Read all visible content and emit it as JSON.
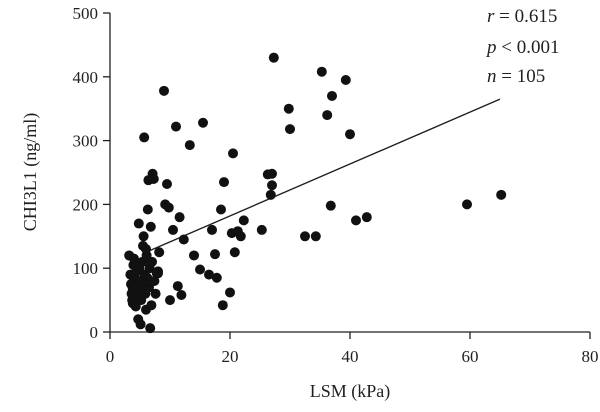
{
  "chart_data": {
    "type": "scatter",
    "xlabel": "LSM (kPa)",
    "ylabel": "CHI3L1 (ng/ml)",
    "xlim": [
      0,
      80
    ],
    "ylim": [
      0,
      500
    ],
    "xticks": [
      "0",
      "20",
      "40",
      "60",
      "80"
    ],
    "yticks": [
      "0",
      "100",
      "200",
      "300",
      "400",
      "500"
    ],
    "grid": false,
    "legend": "none",
    "annotations": {
      "r_symbol": "r",
      "r_value": " = 0.615",
      "p_symbol": "p",
      "p_value": " < 0.001",
      "n_symbol": "n",
      "n_value": " = 105"
    },
    "trendline": {
      "x": [
        6.0,
        65.0
      ],
      "y": [
        125,
        365
      ]
    },
    "points": [
      [
        3.2,
        120
      ],
      [
        3.4,
        90
      ],
      [
        3.5,
        75
      ],
      [
        3.6,
        60
      ],
      [
        3.7,
        50
      ],
      [
        3.8,
        45
      ],
      [
        3.9,
        105
      ],
      [
        4.0,
        115
      ],
      [
        4.1,
        85
      ],
      [
        4.2,
        70
      ],
      [
        4.3,
        40
      ],
      [
        4.4,
        55
      ],
      [
        4.5,
        95
      ],
      [
        4.6,
        65
      ],
      [
        4.7,
        20
      ],
      [
        4.8,
        170
      ],
      [
        4.9,
        100
      ],
      [
        5.0,
        80
      ],
      [
        5.1,
        12
      ],
      [
        5.2,
        50
      ],
      [
        5.3,
        72
      ],
      [
        5.4,
        110
      ],
      [
        5.5,
        135
      ],
      [
        5.6,
        150
      ],
      [
        5.7,
        305
      ],
      [
        5.8,
        90
      ],
      [
        5.9,
        60
      ],
      [
        6.0,
        35
      ],
      [
        6.1,
        120
      ],
      [
        6.2,
        85
      ],
      [
        6.3,
        192
      ],
      [
        6.4,
        238
      ],
      [
        6.5,
        70
      ],
      [
        6.6,
        100
      ],
      [
        6.7,
        6
      ],
      [
        6.8,
        165
      ],
      [
        6.9,
        42
      ],
      [
        7.0,
        110
      ],
      [
        7.1,
        248
      ],
      [
        7.2,
        240
      ],
      [
        7.4,
        80
      ],
      [
        7.6,
        60
      ],
      [
        7.8,
        92
      ],
      [
        8.0,
        95
      ],
      [
        8.2,
        125
      ],
      [
        4.2,
        108
      ],
      [
        4.5,
        98
      ],
      [
        3.8,
        68
      ],
      [
        5.0,
        58
      ],
      [
        5.8,
        75
      ],
      [
        9.0,
        378
      ],
      [
        9.2,
        200
      ],
      [
        9.5,
        232
      ],
      [
        9.8,
        195
      ],
      [
        10.0,
        50
      ],
      [
        10.5,
        160
      ],
      [
        11.0,
        322
      ],
      [
        11.3,
        72
      ],
      [
        11.6,
        180
      ],
      [
        11.9,
        58
      ],
      [
        12.3,
        145
      ],
      [
        13.3,
        293
      ],
      [
        14.0,
        120
      ],
      [
        15.0,
        98
      ],
      [
        15.5,
        328
      ],
      [
        16.5,
        90
      ],
      [
        17.0,
        160
      ],
      [
        17.5,
        122
      ],
      [
        17.8,
        85
      ],
      [
        18.5,
        192
      ],
      [
        18.8,
        42
      ],
      [
        19.0,
        235
      ],
      [
        20.0,
        62
      ],
      [
        20.3,
        155
      ],
      [
        20.5,
        280
      ],
      [
        20.8,
        125
      ],
      [
        21.3,
        158
      ],
      [
        21.8,
        150
      ],
      [
        22.3,
        175
      ],
      [
        25.3,
        160
      ],
      [
        26.3,
        247
      ],
      [
        26.8,
        215
      ],
      [
        27.0,
        248
      ],
      [
        27.3,
        430
      ],
      [
        27.0,
        230
      ],
      [
        29.8,
        350
      ],
      [
        30.0,
        318
      ],
      [
        32.5,
        150
      ],
      [
        34.3,
        150
      ],
      [
        35.3,
        408
      ],
      [
        36.2,
        340
      ],
      [
        36.8,
        198
      ],
      [
        37.0,
        370
      ],
      [
        39.3,
        395
      ],
      [
        40.0,
        310
      ],
      [
        41.0,
        175
      ],
      [
        42.8,
        180
      ],
      [
        59.5,
        200
      ],
      [
        65.2,
        215
      ],
      [
        7.3,
        240
      ],
      [
        8.0,
        92
      ],
      [
        6.0,
        130
      ],
      [
        5.3,
        65
      ],
      [
        4.0,
        45
      ],
      [
        6.6,
        105
      ]
    ]
  }
}
